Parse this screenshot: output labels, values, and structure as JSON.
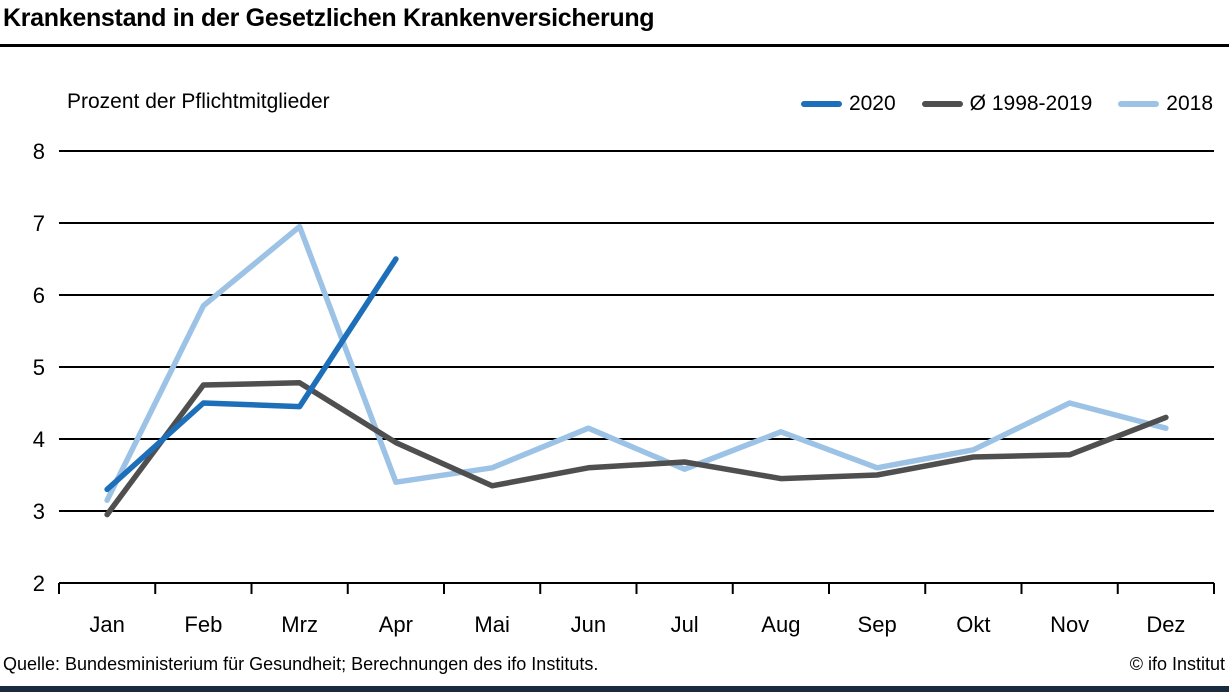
{
  "header": {
    "title": "Krankenstand in der Gesetzlichen Krankenversicherung"
  },
  "chart_data": {
    "type": "line",
    "subtitle": "Prozent der Pflichtmitglieder",
    "categories": [
      "Jan",
      "Feb",
      "Mrz",
      "Apr",
      "Mai",
      "Jun",
      "Jul",
      "Aug",
      "Sep",
      "Okt",
      "Nov",
      "Dez"
    ],
    "y_ticks": [
      2,
      3,
      4,
      5,
      6,
      7,
      8
    ],
    "ylim": [
      2,
      8
    ],
    "grid": "horizontal",
    "legend_position": "top-right",
    "series": [
      {
        "name": "2020",
        "color": "#1c6fb8",
        "values": [
          3.3,
          4.5,
          4.45,
          6.5
        ]
      },
      {
        "name": "Ø 1998-2019",
        "color": "#4f4f4f",
        "values": [
          2.95,
          4.75,
          4.78,
          3.95,
          3.35,
          3.6,
          3.68,
          3.45,
          3.5,
          3.75,
          3.78,
          4.3
        ]
      },
      {
        "name": "2018",
        "color": "#9cc3e5",
        "values": [
          3.15,
          5.85,
          6.95,
          3.4,
          3.6,
          4.15,
          3.58,
          4.1,
          3.6,
          3.85,
          4.5,
          4.15
        ]
      }
    ]
  },
  "footer": {
    "source": "Quelle: Bundesministerium für Gesundheit; Berechnungen des ifo Instituts.",
    "copyright": "© ifo Institut"
  },
  "colors": {
    "grid": "#000000",
    "brand_bar": "#1a2b40"
  }
}
